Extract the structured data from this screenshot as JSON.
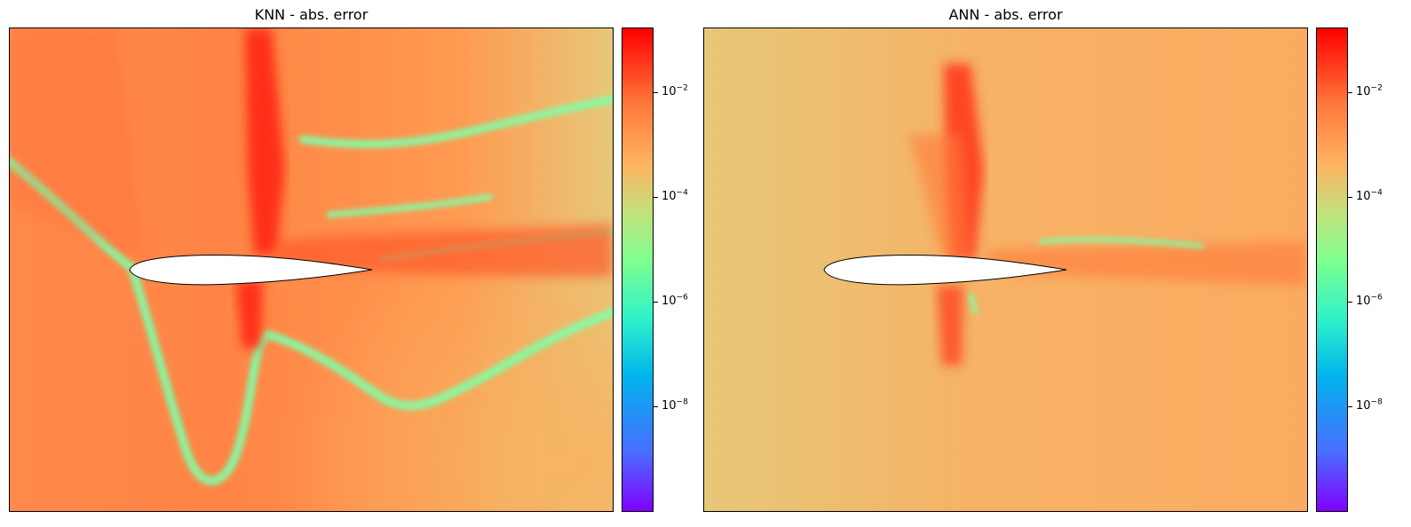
{
  "panels": [
    {
      "title": "KNN - abs. error",
      "colorbar": {
        "scale": "log",
        "colormap": "rainbow",
        "ticks": [
          "10^-2",
          "10^-4",
          "10^-6",
          "10^-8"
        ]
      }
    },
    {
      "title": "ANN - abs. error",
      "colorbar": {
        "scale": "log",
        "colormap": "rainbow",
        "ticks": [
          "10^-2",
          "10^-4",
          "10^-6",
          "10^-8"
        ]
      }
    }
  ],
  "chart_data": [
    {
      "type": "heatmap",
      "title": "KNN - abs. error",
      "colorbar_scale": "log",
      "colorbar_range": [
        1e-10,
        0.1
      ],
      "colorbar_ticks": [
        0.01,
        0.0001,
        1e-06,
        1e-08
      ],
      "dominant_colors": {
        "background": "#ff8a4a",
        "far_field": "#f7a85a",
        "low_error_streaks": "#7fffa0",
        "high_error": "#ff2a10"
      }
    },
    {
      "type": "heatmap",
      "title": "ANN - abs. error",
      "colorbar_scale": "log",
      "colorbar_range": [
        1e-10,
        0.1
      ],
      "colorbar_ticks": [
        0.01,
        0.0001,
        1e-06,
        1e-08
      ],
      "dominant_colors": {
        "background": "#f4b26a",
        "far_field": "#e8c876",
        "low_error_streaks": "#7fffa0",
        "high_error": "#ff2a10"
      }
    }
  ]
}
